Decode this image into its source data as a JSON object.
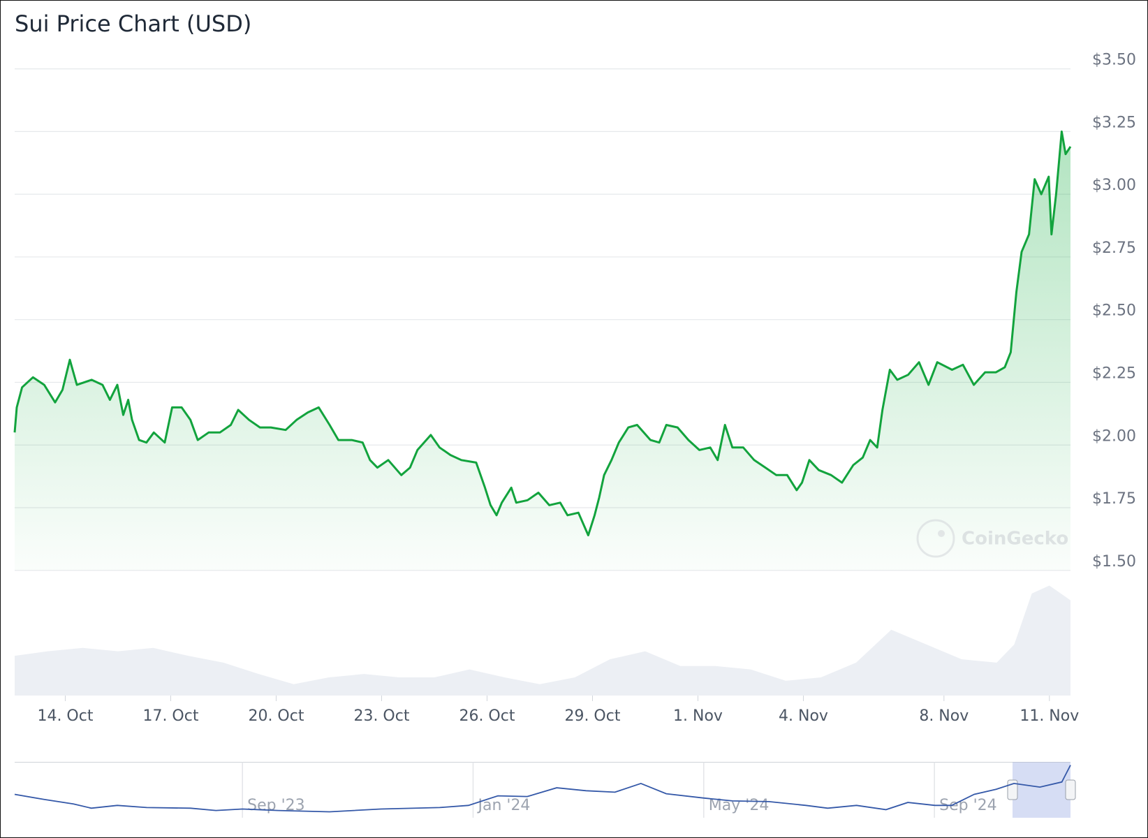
{
  "chart_data": {
    "type": "line",
    "title": "Sui Price Chart (USD)",
    "watermark": "CoinGecko",
    "color": "#12a33d",
    "xlim": [
      -1.44,
      28.6
    ],
    "xticks": [
      {
        "value": 0,
        "label": "14. Oct"
      },
      {
        "value": 3,
        "label": "17. Oct"
      },
      {
        "value": 6,
        "label": "20. Oct"
      },
      {
        "value": 9,
        "label": "23. Oct"
      },
      {
        "value": 12,
        "label": "26. Oct"
      },
      {
        "value": 15,
        "label": "29. Oct"
      },
      {
        "value": 18,
        "label": "1. Nov"
      },
      {
        "value": 21,
        "label": "4. Nov"
      },
      {
        "value": 25,
        "label": "8. Nov"
      },
      {
        "value": 28,
        "label": "11. Nov"
      }
    ],
    "ylim": [
      1.5,
      3.5
    ],
    "yticks": [
      {
        "value": 1.5,
        "label": "$1.50"
      },
      {
        "value": 1.75,
        "label": "$1.75"
      },
      {
        "value": 2,
        "label": "$2.00"
      },
      {
        "value": 2.25,
        "label": "$2.25"
      },
      {
        "value": 2.5,
        "label": "$2.50"
      },
      {
        "value": 2.75,
        "label": "$2.75"
      },
      {
        "value": 3,
        "label": "$3.00"
      },
      {
        "value": 3.25,
        "label": "$3.25"
      },
      {
        "value": 3.5,
        "label": "$3.50"
      }
    ],
    "grid": true,
    "x": [
      -1.44,
      -1.38,
      -1.23,
      -0.92,
      -0.6,
      -0.29,
      -0.08,
      0.13,
      0.33,
      0.75,
      1.06,
      1.27,
      1.48,
      1.65,
      1.79,
      1.9,
      2.1,
      2.31,
      2.52,
      2.83,
      3.04,
      3.31,
      3.56,
      3.77,
      4.08,
      4.4,
      4.71,
      4.92,
      5.23,
      5.54,
      5.85,
      6.27,
      6.58,
      6.9,
      7.21,
      7.52,
      7.77,
      8.15,
      8.46,
      8.67,
      8.88,
      9.19,
      9.56,
      9.81,
      10.02,
      10.4,
      10.65,
      10.96,
      11.27,
      11.69,
      11.94,
      12.1,
      12.27,
      12.42,
      12.69,
      12.83,
      13.15,
      13.46,
      13.77,
      14.08,
      14.29,
      14.6,
      14.88,
      15.06,
      15.19,
      15.33,
      15.54,
      15.75,
      16.02,
      16.27,
      16.65,
      16.9,
      17.1,
      17.42,
      17.73,
      18.04,
      18.35,
      18.56,
      18.77,
      18.98,
      19.29,
      19.6,
      19.92,
      20.23,
      20.54,
      20.81,
      20.96,
      21.17,
      21.44,
      21.79,
      22.1,
      22.42,
      22.69,
      22.9,
      23.1,
      23.25,
      23.46,
      23.67,
      23.98,
      24.29,
      24.56,
      24.81,
      25.23,
      25.54,
      25.85,
      26.17,
      26.48,
      26.73,
      26.9,
      27.06,
      27.21,
      27.42,
      27.58,
      27.77,
      27.98,
      28.06,
      28.19,
      28.35,
      28.46,
      28.6
    ],
    "values": [
      2.05,
      2.15,
      2.23,
      2.27,
      2.24,
      2.17,
      2.22,
      2.34,
      2.24,
      2.26,
      2.24,
      2.18,
      2.24,
      2.12,
      2.18,
      2.1,
      2.02,
      2.01,
      2.05,
      2.01,
      2.15,
      2.15,
      2.1,
      2.02,
      2.05,
      2.05,
      2.08,
      2.14,
      2.1,
      2.07,
      2.07,
      2.06,
      2.1,
      2.13,
      2.15,
      2.08,
      2.02,
      2.02,
      2.01,
      1.94,
      1.91,
      1.94,
      1.88,
      1.91,
      1.98,
      2.04,
      1.99,
      1.96,
      1.94,
      1.93,
      1.83,
      1.76,
      1.72,
      1.77,
      1.83,
      1.77,
      1.78,
      1.81,
      1.76,
      1.77,
      1.72,
      1.73,
      1.64,
      1.72,
      1.79,
      1.88,
      1.94,
      2.01,
      2.07,
      2.08,
      2.02,
      2.01,
      2.08,
      2.07,
      2.02,
      1.98,
      1.99,
      1.94,
      2.08,
      1.99,
      1.99,
      1.94,
      1.91,
      1.88,
      1.88,
      1.82,
      1.85,
      1.94,
      1.9,
      1.88,
      1.85,
      1.92,
      1.95,
      2.02,
      1.99,
      2.14,
      2.3,
      2.26,
      2.28,
      2.33,
      2.24,
      2.33,
      2.3,
      2.32,
      2.24,
      2.29,
      2.29,
      2.31,
      2.37,
      2.61,
      2.77,
      2.84,
      3.06,
      3.0,
      3.07,
      2.84,
      3.0,
      3.25,
      3.16,
      3.19
    ],
    "volume": {
      "color": "#eceff4",
      "x": [
        -1.44,
        -0.5,
        0.5,
        1.5,
        2.5,
        3.5,
        4.5,
        5.5,
        6.5,
        7.5,
        8.5,
        9.5,
        10.5,
        11.5,
        12.5,
        13.5,
        14.5,
        15.5,
        16.5,
        17.5,
        18.5,
        19.5,
        20.5,
        21.5,
        22.5,
        23.5,
        24.5,
        25.5,
        26.5,
        27.0,
        27.5,
        28.0,
        28.6
      ],
      "values": [
        0.35,
        0.39,
        0.42,
        0.39,
        0.42,
        0.35,
        0.29,
        0.19,
        0.1,
        0.16,
        0.19,
        0.16,
        0.16,
        0.23,
        0.16,
        0.1,
        0.16,
        0.32,
        0.39,
        0.26,
        0.26,
        0.23,
        0.13,
        0.16,
        0.29,
        0.58,
        0.45,
        0.32,
        0.29,
        0.45,
        0.9,
        0.97,
        0.84
      ],
      "ylim": [
        0,
        1
      ]
    },
    "navigator": {
      "color": "#3458a8",
      "xlim": [
        -3.95,
        14.36
      ],
      "ylim": [
        0,
        3.37
      ],
      "xticks": [
        {
          "value": 0,
          "label": "Sep '23"
        },
        {
          "value": 4,
          "label": "Jan '24"
        },
        {
          "value": 8,
          "label": "May '24"
        },
        {
          "value": 12,
          "label": "Sep '24"
        }
      ],
      "x": [
        -3.95,
        -3.44,
        -2.93,
        -2.62,
        -2.17,
        -1.66,
        -0.9,
        -0.46,
        0,
        0.62,
        1.51,
        2.4,
        3.42,
        3.92,
        4.43,
        4.94,
        5.45,
        5.96,
        6.46,
        6.91,
        7.35,
        7.99,
        8.5,
        9.13,
        9.77,
        10.15,
        10.65,
        11.16,
        11.54,
        12.01,
        12.3,
        12.69,
        13.07,
        13.38,
        13.83,
        14.21,
        14.36
      ],
      "values": [
        1.42,
        1.11,
        0.84,
        0.58,
        0.75,
        0.62,
        0.58,
        0.44,
        0.53,
        0.44,
        0.36,
        0.53,
        0.62,
        0.75,
        1.33,
        1.29,
        1.82,
        1.64,
        1.55,
        2.08,
        1.46,
        1.2,
        1.02,
        0.98,
        0.75,
        0.58,
        0.75,
        0.49,
        0.93,
        0.75,
        0.75,
        1.42,
        1.73,
        2.08,
        1.86,
        2.17,
        3.19
      ]
    }
  }
}
